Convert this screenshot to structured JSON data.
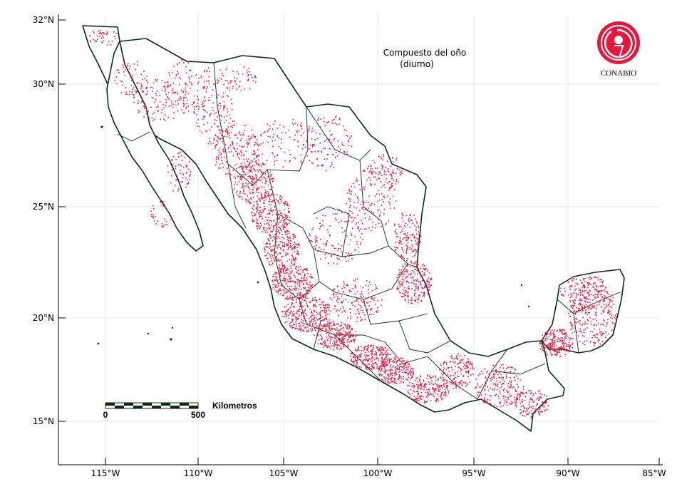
{
  "title": {
    "line1": "Compuesto del oño",
    "line2": "(diurno)"
  },
  "logo": {
    "text": "CONABIO",
    "color": "#e8163d"
  },
  "axes": {
    "x_ticks": [
      "115°W",
      "110°W",
      "105°W",
      "100°W",
      "95°W",
      "90°W",
      "85°W"
    ],
    "y_ticks": [
      "32°N",
      "30°N",
      "25°N",
      "20°N",
      "15°N"
    ]
  },
  "scale_bar": {
    "unit_label": "Kilometros",
    "start_label": "0",
    "end_label": "500"
  },
  "colors": {
    "fire_points": "#e8163d",
    "borders": "#0c2a14",
    "grid": "#e6e8f0"
  }
}
